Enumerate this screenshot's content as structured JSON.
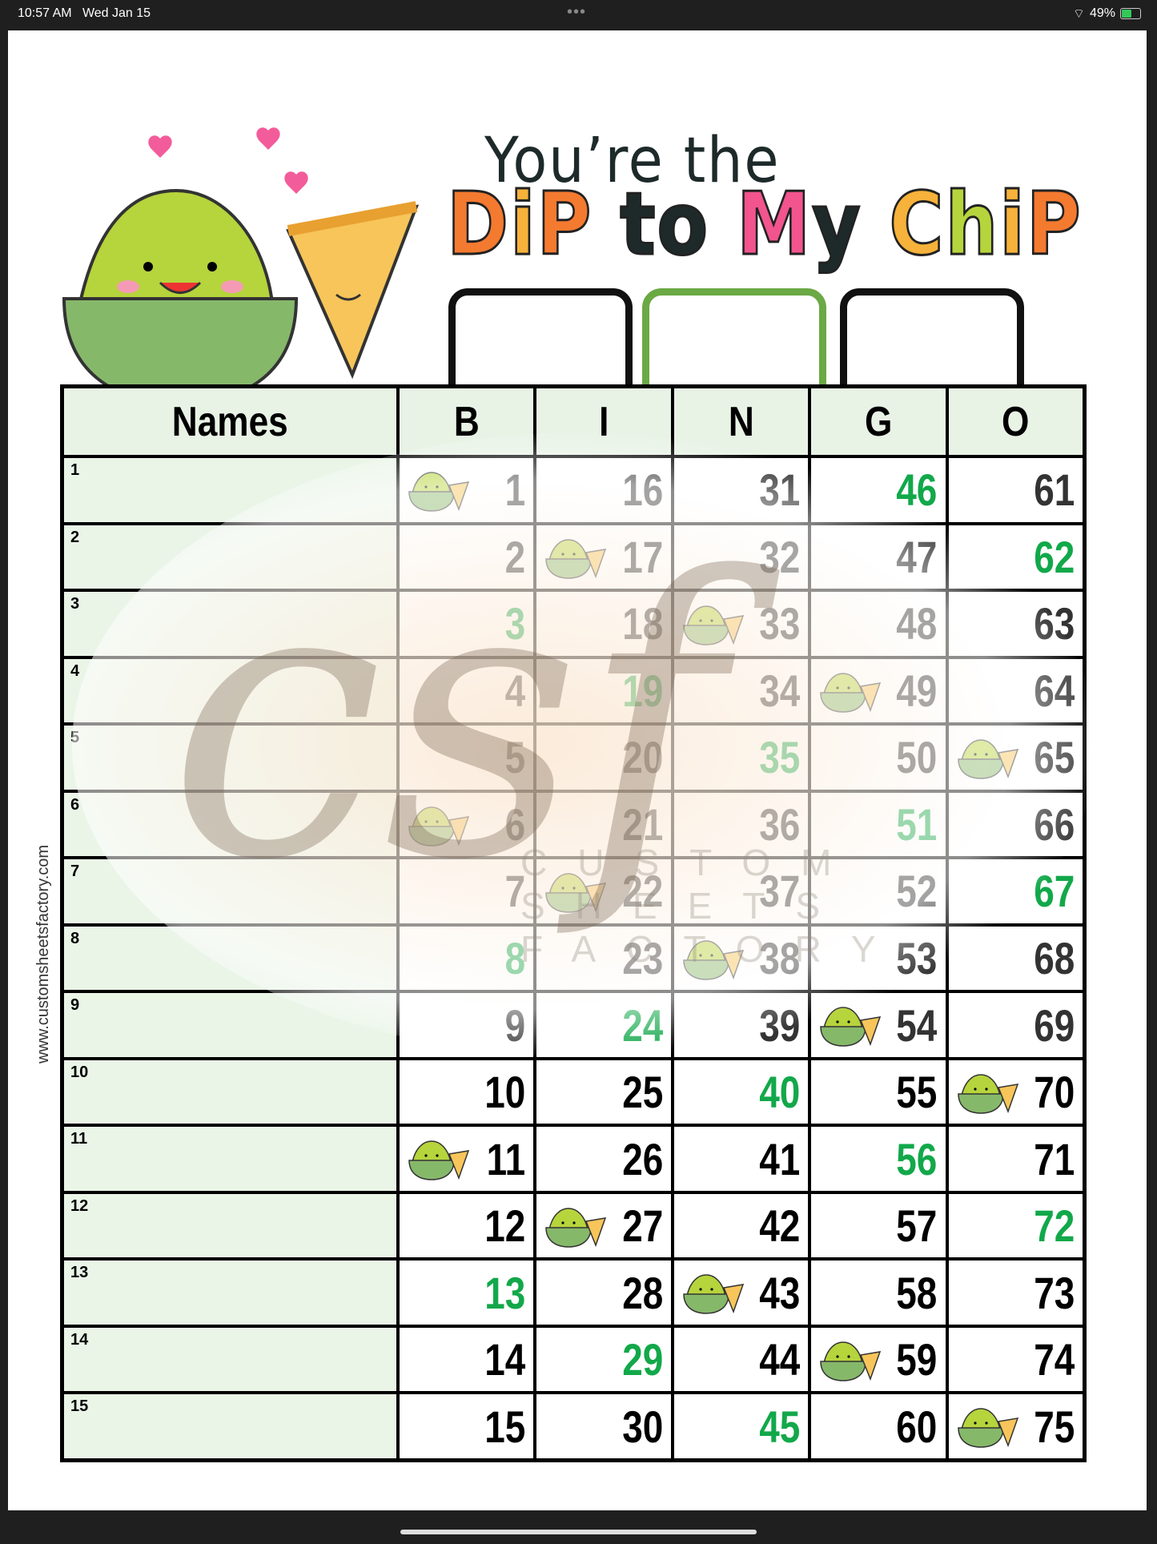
{
  "status": {
    "time": "10:57 AM",
    "date": "Wed Jan 15",
    "battery": "49%",
    "battery_level": 0.49
  },
  "title": {
    "line1": "You’re the",
    "words": [
      {
        "t": "D",
        "c": "#f47a30"
      },
      {
        "t": "i",
        "c": "#f6b23a"
      },
      {
        "t": "P",
        "c": "#f47a30"
      },
      {
        "t": " to ",
        "c": "#1e2a2a"
      },
      {
        "t": "M",
        "c": "#f2548e"
      },
      {
        "t": "y ",
        "c": "#1e2a2a"
      },
      {
        "t": "C",
        "c": "#f6b23a"
      },
      {
        "t": "h",
        "c": "#b6d43c"
      },
      {
        "t": "i",
        "c": "#f6b23a"
      },
      {
        "t": "P",
        "c": "#f47a30"
      }
    ]
  },
  "side_text": "www.customsheetsfactory.com",
  "watermark": {
    "logo": "csf",
    "brand": "CUSTOM SHEETS FACTORY"
  },
  "table": {
    "headers": [
      "Names",
      "B",
      "I",
      "N",
      "G",
      "O"
    ],
    "row_labels": [
      "1",
      "2",
      "3",
      "4",
      "5",
      "6",
      "7",
      "8",
      "9",
      "10",
      "11",
      "12",
      "13",
      "14",
      "15"
    ],
    "rows": [
      [
        1,
        16,
        31,
        46,
        61
      ],
      [
        2,
        17,
        32,
        47,
        62
      ],
      [
        3,
        18,
        33,
        48,
        63
      ],
      [
        4,
        19,
        34,
        49,
        64
      ],
      [
        5,
        20,
        35,
        50,
        65
      ],
      [
        6,
        21,
        36,
        51,
        66
      ],
      [
        7,
        22,
        37,
        52,
        67
      ],
      [
        8,
        23,
        38,
        53,
        68
      ],
      [
        9,
        24,
        39,
        54,
        69
      ],
      [
        10,
        25,
        40,
        55,
        70
      ],
      [
        11,
        26,
        41,
        56,
        71
      ],
      [
        12,
        27,
        42,
        57,
        72
      ],
      [
        13,
        28,
        43,
        58,
        73
      ],
      [
        14,
        29,
        44,
        59,
        74
      ],
      [
        15,
        30,
        45,
        60,
        75
      ]
    ],
    "green_numbers": [
      46,
      62,
      3,
      19,
      35,
      51,
      67,
      8,
      24,
      40,
      56,
      72,
      13,
      29,
      45
    ],
    "icon_numbers": [
      1,
      17,
      33,
      49,
      65,
      6,
      22,
      38,
      54,
      70,
      11,
      27,
      43,
      59,
      75
    ],
    "icon": "guacamole-chip-icon",
    "colors": {
      "green": "#12a84a",
      "header_bg": "#e8f3e6",
      "accent_box": "#6aa944"
    }
  }
}
